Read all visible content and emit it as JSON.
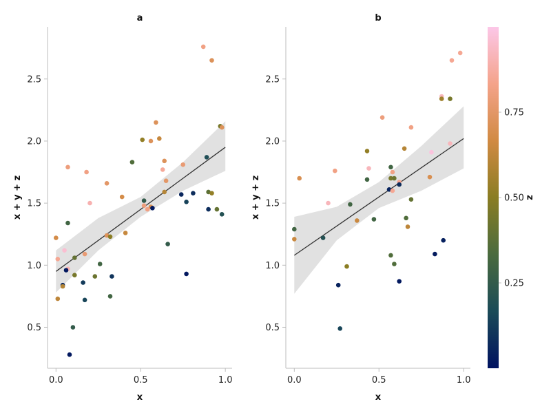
{
  "chart_data": [
    {
      "type": "scatter",
      "title": "a",
      "xlabel": "x",
      "ylabel": "x + y + z",
      "xlim": [
        -0.05,
        1.04
      ],
      "ylim": [
        0.17,
        2.92
      ],
      "xticks": [
        "0.0",
        "0.5",
        "1.0"
      ],
      "yticks": [
        "0.5",
        "1.0",
        "1.5",
        "2.0",
        "2.5"
      ],
      "fit": {
        "x": [
          0.0,
          1.0
        ],
        "y": [
          0.95,
          1.95
        ]
      },
      "band": {
        "x": [
          0.0,
          0.25,
          0.5,
          0.75,
          1.0
        ],
        "lower": [
          0.78,
          1.12,
          1.39,
          1.6,
          1.76
        ],
        "upper": [
          1.12,
          1.38,
          1.55,
          1.83,
          2.16
        ]
      },
      "points": [
        {
          "x": 0.87,
          "y": 2.76,
          "z": 0.82
        },
        {
          "x": 0.92,
          "y": 2.65,
          "z": 0.72
        },
        {
          "x": 0.59,
          "y": 2.15,
          "z": 0.72
        },
        {
          "x": 0.61,
          "y": 2.02,
          "z": 0.64
        },
        {
          "x": 0.51,
          "y": 2.01,
          "z": 0.52
        },
        {
          "x": 0.56,
          "y": 2.0,
          "z": 0.72
        },
        {
          "x": 0.97,
          "y": 2.12,
          "z": 0.45
        },
        {
          "x": 0.98,
          "y": 2.11,
          "z": 0.72
        },
        {
          "x": 0.89,
          "y": 1.87,
          "z": 0.18
        },
        {
          "x": 0.64,
          "y": 1.84,
          "z": 0.72
        },
        {
          "x": 0.45,
          "y": 1.83,
          "z": 0.35
        },
        {
          "x": 0.75,
          "y": 1.81,
          "z": 0.78
        },
        {
          "x": 0.07,
          "y": 1.79,
          "z": 0.8
        },
        {
          "x": 0.63,
          "y": 1.77,
          "z": 0.86
        },
        {
          "x": 0.18,
          "y": 1.75,
          "z": 0.82
        },
        {
          "x": 0.65,
          "y": 1.68,
          "z": 0.75
        },
        {
          "x": 0.3,
          "y": 1.66,
          "z": 0.75
        },
        {
          "x": 0.64,
          "y": 1.59,
          "z": 0.6
        },
        {
          "x": 0.9,
          "y": 1.59,
          "z": 0.38
        },
        {
          "x": 0.92,
          "y": 1.58,
          "z": 0.52
        },
        {
          "x": 0.81,
          "y": 1.58,
          "z": 0.08
        },
        {
          "x": 0.74,
          "y": 1.57,
          "z": 0.06
        },
        {
          "x": 0.39,
          "y": 1.55,
          "z": 0.68
        },
        {
          "x": 0.52,
          "y": 1.52,
          "z": 0.25
        },
        {
          "x": 0.77,
          "y": 1.51,
          "z": 0.14
        },
        {
          "x": 0.2,
          "y": 1.5,
          "z": 0.9
        },
        {
          "x": 0.52,
          "y": 1.48,
          "z": 0.8
        },
        {
          "x": 0.56,
          "y": 1.47,
          "z": 0.7
        },
        {
          "x": 0.57,
          "y": 1.46,
          "z": 0.02
        },
        {
          "x": 0.54,
          "y": 1.45,
          "z": 0.82
        },
        {
          "x": 0.9,
          "y": 1.45,
          "z": 0.08
        },
        {
          "x": 0.95,
          "y": 1.45,
          "z": 0.4
        },
        {
          "x": 0.98,
          "y": 1.41,
          "z": 0.2
        },
        {
          "x": 0.07,
          "y": 1.34,
          "z": 0.3
        },
        {
          "x": 0.41,
          "y": 1.26,
          "z": 0.64
        },
        {
          "x": 0.3,
          "y": 1.24,
          "z": 0.72
        },
        {
          "x": 0.32,
          "y": 1.23,
          "z": 0.5
        },
        {
          "x": 0.0,
          "y": 1.22,
          "z": 0.68
        },
        {
          "x": 0.66,
          "y": 1.17,
          "z": 0.25
        },
        {
          "x": 0.05,
          "y": 1.12,
          "z": 0.96
        },
        {
          "x": 0.17,
          "y": 1.09,
          "z": 0.78
        },
        {
          "x": 0.11,
          "y": 1.06,
          "z": 0.4
        },
        {
          "x": 0.01,
          "y": 1.05,
          "z": 0.85
        },
        {
          "x": 0.26,
          "y": 1.01,
          "z": 0.3
        },
        {
          "x": 0.07,
          "y": 0.97,
          "z": 0.9
        },
        {
          "x": 0.06,
          "y": 0.96,
          "z": 0.02
        },
        {
          "x": 0.77,
          "y": 0.93,
          "z": 0.02
        },
        {
          "x": 0.11,
          "y": 0.92,
          "z": 0.45
        },
        {
          "x": 0.23,
          "y": 0.91,
          "z": 0.42
        },
        {
          "x": 0.33,
          "y": 0.91,
          "z": 0.1
        },
        {
          "x": 0.16,
          "y": 0.86,
          "z": 0.12
        },
        {
          "x": 0.04,
          "y": 0.84,
          "z": 0.06
        },
        {
          "x": 0.04,
          "y": 0.83,
          "z": 0.6
        },
        {
          "x": 0.32,
          "y": 0.75,
          "z": 0.3
        },
        {
          "x": 0.01,
          "y": 0.73,
          "z": 0.62
        },
        {
          "x": 0.17,
          "y": 0.72,
          "z": 0.15
        },
        {
          "x": 0.1,
          "y": 0.5,
          "z": 0.25
        },
        {
          "x": 0.08,
          "y": 0.28,
          "z": 0.02
        }
      ]
    },
    {
      "type": "scatter",
      "title": "b",
      "xlabel": "x",
      "ylabel": "x + y + z",
      "xlim": [
        -0.05,
        1.04
      ],
      "ylim": [
        0.17,
        2.92
      ],
      "xticks": [
        "0.0",
        "0.5",
        "1.0"
      ],
      "yticks": [
        "0.5",
        "1.0",
        "1.5",
        "2.0",
        "2.5"
      ],
      "fit": {
        "x": [
          0.0,
          1.0
        ],
        "y": [
          1.08,
          2.02
        ]
      },
      "band": {
        "x": [
          0.0,
          0.25,
          0.5,
          0.75,
          1.0
        ],
        "lower": [
          0.77,
          1.2,
          1.46,
          1.6,
          1.78
        ],
        "upper": [
          1.39,
          1.47,
          1.67,
          1.96,
          2.28
        ]
      },
      "points": [
        {
          "x": 0.98,
          "y": 2.71,
          "z": 0.85
        },
        {
          "x": 0.93,
          "y": 2.65,
          "z": 0.85
        },
        {
          "x": 0.87,
          "y": 2.36,
          "z": 0.92
        },
        {
          "x": 0.87,
          "y": 2.34,
          "z": 0.55
        },
        {
          "x": 0.92,
          "y": 2.34,
          "z": 0.45
        },
        {
          "x": 0.52,
          "y": 2.19,
          "z": 0.8
        },
        {
          "x": 0.69,
          "y": 2.11,
          "z": 0.82
        },
        {
          "x": 0.92,
          "y": 1.98,
          "z": 0.92
        },
        {
          "x": 0.65,
          "y": 1.94,
          "z": 0.6
        },
        {
          "x": 0.43,
          "y": 1.92,
          "z": 0.52
        },
        {
          "x": 0.81,
          "y": 1.91,
          "z": 0.98
        },
        {
          "x": 0.57,
          "y": 1.79,
          "z": 0.3
        },
        {
          "x": 0.44,
          "y": 1.78,
          "z": 0.92
        },
        {
          "x": 0.24,
          "y": 1.76,
          "z": 0.82
        },
        {
          "x": 0.58,
          "y": 1.75,
          "z": 0.82
        },
        {
          "x": 0.03,
          "y": 1.7,
          "z": 0.7
        },
        {
          "x": 0.8,
          "y": 1.71,
          "z": 0.7
        },
        {
          "x": 0.43,
          "y": 1.69,
          "z": 0.3
        },
        {
          "x": 0.57,
          "y": 1.7,
          "z": 0.45
        },
        {
          "x": 0.59,
          "y": 1.7,
          "z": 0.42
        },
        {
          "x": 0.62,
          "y": 1.67,
          "z": 0.85
        },
        {
          "x": 0.62,
          "y": 1.65,
          "z": 0.08
        },
        {
          "x": 0.56,
          "y": 1.61,
          "z": 0.05
        },
        {
          "x": 0.58,
          "y": 1.6,
          "z": 0.85
        },
        {
          "x": 0.69,
          "y": 1.53,
          "z": 0.4
        },
        {
          "x": 0.2,
          "y": 1.5,
          "z": 0.92
        },
        {
          "x": 0.33,
          "y": 1.49,
          "z": 0.3
        },
        {
          "x": 0.66,
          "y": 1.38,
          "z": 0.35
        },
        {
          "x": 0.47,
          "y": 1.37,
          "z": 0.3
        },
        {
          "x": 0.37,
          "y": 1.36,
          "z": 0.65
        },
        {
          "x": 0.67,
          "y": 1.31,
          "z": 0.62
        },
        {
          "x": 0.0,
          "y": 1.29,
          "z": 0.3
        },
        {
          "x": 0.17,
          "y": 1.22,
          "z": 0.2
        },
        {
          "x": 0.0,
          "y": 1.21,
          "z": 0.65
        },
        {
          "x": 0.88,
          "y": 1.2,
          "z": 0.04
        },
        {
          "x": 0.83,
          "y": 1.09,
          "z": 0.03
        },
        {
          "x": 0.57,
          "y": 1.08,
          "z": 0.35
        },
        {
          "x": 0.59,
          "y": 1.01,
          "z": 0.35
        },
        {
          "x": 0.31,
          "y": 0.99,
          "z": 0.5
        },
        {
          "x": 0.62,
          "y": 0.87,
          "z": 0.02
        },
        {
          "x": 0.26,
          "y": 0.84,
          "z": 0.05
        },
        {
          "x": 0.27,
          "y": 0.49,
          "z": 0.15
        }
      ]
    }
  ],
  "colorbar": {
    "label": "z",
    "ticks": [
      "0.25",
      "0.50",
      "0.75"
    ],
    "tick_values": [
      0.25,
      0.5,
      0.75
    ],
    "range": [
      0.0,
      1.0
    ],
    "colors": [
      "#001260",
      "#1b4b58",
      "#4a6b3e",
      "#8a7d23",
      "#d18a43",
      "#f4a38a",
      "#fcc7e8"
    ]
  }
}
